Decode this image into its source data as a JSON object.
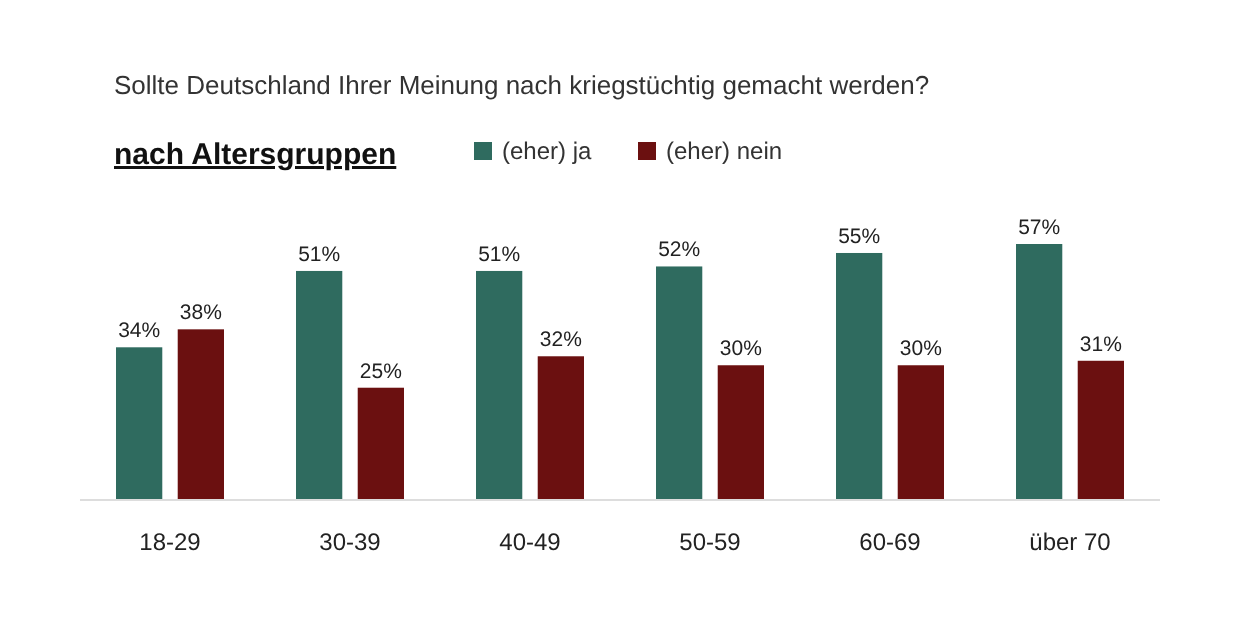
{
  "chart_data": {
    "type": "bar",
    "title": "Sollte Deutschland Ihrer Meinung nach kriegstüchtig gemacht werden?",
    "subtitle": "nach Altersgruppen",
    "categories": [
      "18-29",
      "30-39",
      "40-49",
      "50-59",
      "60-69",
      "über 70"
    ],
    "series": [
      {
        "name": "(eher) ja",
        "color": "#2f6b5f",
        "values": [
          34,
          51,
          51,
          52,
          55,
          57
        ],
        "value_labels": [
          "34%",
          "51%",
          "51%",
          "52%",
          "55%",
          "57%"
        ]
      },
      {
        "name": "(eher) nein",
        "color": "#6b1010",
        "values": [
          38,
          25,
          32,
          30,
          30,
          31
        ],
        "value_labels": [
          "38%",
          "25%",
          "32%",
          "30%",
          "30%",
          "31%"
        ]
      }
    ],
    "legend": "top"
  }
}
